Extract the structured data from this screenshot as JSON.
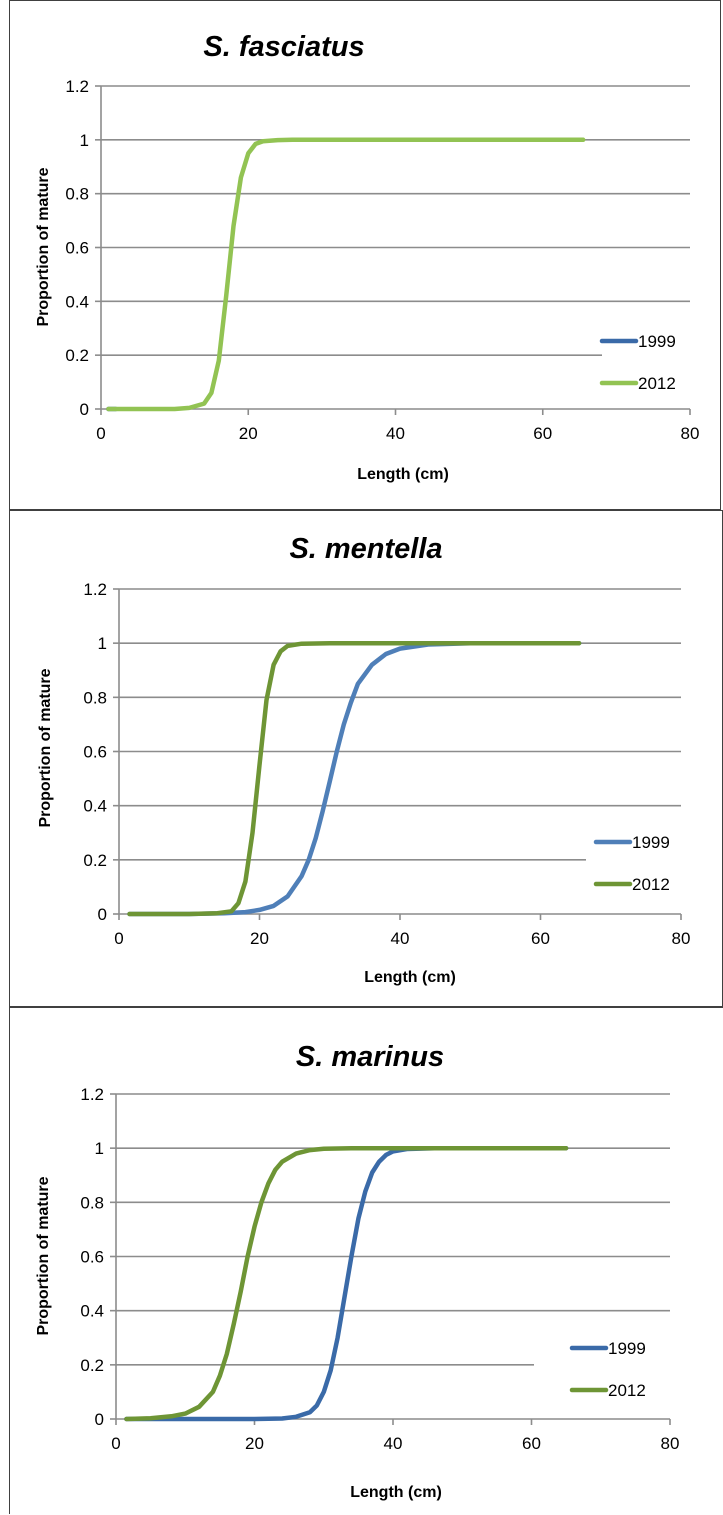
{
  "chart_data": [
    {
      "type": "line",
      "title": "S. fasciatus",
      "xlabel": "Length (cm)",
      "ylabel": "Proportion of mature",
      "xlim": [
        0,
        80
      ],
      "ylim": [
        0,
        1.2
      ],
      "x_ticks": [
        "0",
        "20",
        "40",
        "60",
        "80"
      ],
      "y_ticks": [
        "0",
        "0.2",
        "0.4",
        "0.6",
        "0.8",
        "1",
        "1.2"
      ],
      "grid": true,
      "legend": "right",
      "series": [
        {
          "name": "1999",
          "color": "#3a6aa8",
          "x": [
            1,
            2
          ],
          "y": [
            0,
            0
          ]
        },
        {
          "name": "2012",
          "color": "#92c353",
          "x": [
            1,
            5,
            10,
            12,
            14,
            15,
            16,
            17,
            18,
            19,
            20,
            21,
            22,
            24,
            26,
            30,
            40,
            50,
            60,
            65.5
          ],
          "y": [
            0,
            0,
            0,
            0.004,
            0.02,
            0.06,
            0.18,
            0.42,
            0.68,
            0.86,
            0.95,
            0.985,
            0.995,
            0.999,
            1,
            1,
            1,
            1,
            1,
            1
          ]
        }
      ]
    },
    {
      "type": "line",
      "title": "S. mentella",
      "xlabel": "Length (cm)",
      "ylabel": "Proportion of mature",
      "xlim": [
        0,
        80
      ],
      "ylim": [
        0,
        1.2
      ],
      "x_ticks": [
        "0",
        "20",
        "40",
        "60",
        "80"
      ],
      "y_ticks": [
        "0",
        "0.2",
        "0.4",
        "0.6",
        "0.8",
        "1",
        "1.2"
      ],
      "grid": true,
      "legend": "right",
      "series": [
        {
          "name": "1999",
          "color": "#4f7fb8",
          "x": [
            1.5,
            10,
            15,
            18,
            20,
            22,
            24,
            26,
            27,
            28,
            29,
            30,
            31,
            32,
            33,
            34,
            36,
            38,
            40,
            44,
            50,
            60,
            65.5
          ],
          "y": [
            0,
            0,
            0.003,
            0.007,
            0.015,
            0.03,
            0.065,
            0.14,
            0.2,
            0.28,
            0.38,
            0.49,
            0.6,
            0.7,
            0.78,
            0.85,
            0.92,
            0.96,
            0.98,
            0.995,
            1,
            1,
            1
          ]
        },
        {
          "name": "2012",
          "color": "#6e9535",
          "x": [
            1.5,
            10,
            14,
            16,
            17,
            18,
            19,
            20,
            21,
            22,
            23,
            24,
            26,
            30,
            40,
            50,
            60,
            65.5
          ],
          "y": [
            0,
            0,
            0.003,
            0.01,
            0.04,
            0.12,
            0.3,
            0.55,
            0.79,
            0.92,
            0.97,
            0.99,
            0.998,
            1,
            1,
            1,
            1,
            1
          ]
        }
      ]
    },
    {
      "type": "line",
      "title": "S. marinus",
      "xlabel": "Length (cm)",
      "ylabel": "Proportion of mature",
      "xlim": [
        0,
        80
      ],
      "ylim": [
        0,
        1.2
      ],
      "x_ticks": [
        "0",
        "20",
        "40",
        "60",
        "80"
      ],
      "y_ticks": [
        "0",
        "0.2",
        "0.4",
        "0.6",
        "0.8",
        "1",
        "1.2"
      ],
      "grid": true,
      "legend": "right",
      "series": [
        {
          "name": "1999",
          "color": "#3a6aa8",
          "x": [
            1.5,
            20,
            24,
            26,
            28,
            29,
            30,
            31,
            32,
            33,
            34,
            35,
            36,
            37,
            38,
            39,
            40,
            42,
            46,
            50,
            60,
            65
          ],
          "y": [
            0,
            0,
            0.002,
            0.008,
            0.025,
            0.05,
            0.1,
            0.18,
            0.3,
            0.45,
            0.6,
            0.74,
            0.84,
            0.91,
            0.95,
            0.975,
            0.988,
            0.997,
            1,
            1,
            1,
            1
          ]
        },
        {
          "name": "2012",
          "color": "#6e9535",
          "x": [
            1.5,
            5,
            8,
            10,
            12,
            14,
            15,
            16,
            17,
            18,
            19,
            20,
            21,
            22,
            23,
            24,
            26,
            28,
            30,
            34,
            40,
            50,
            60,
            65
          ],
          "y": [
            0,
            0.003,
            0.01,
            0.02,
            0.045,
            0.1,
            0.16,
            0.24,
            0.35,
            0.47,
            0.6,
            0.71,
            0.8,
            0.87,
            0.92,
            0.95,
            0.98,
            0.993,
            0.998,
            1,
            1,
            1,
            1,
            1
          ]
        }
      ]
    }
  ]
}
